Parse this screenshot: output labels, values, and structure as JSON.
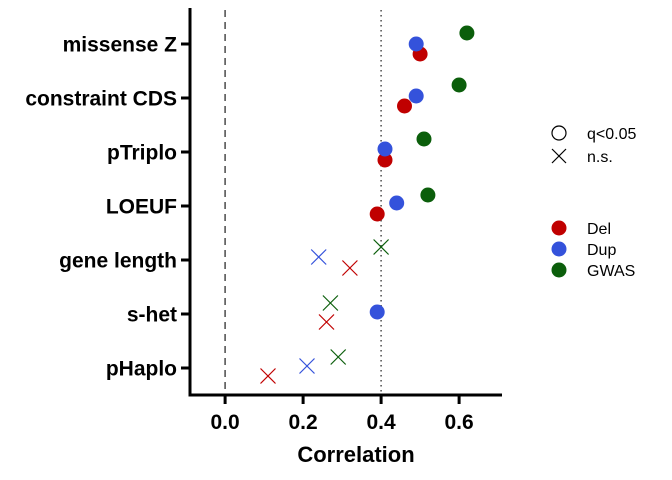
{
  "chart_data": {
    "type": "scatter",
    "title": "",
    "xlabel": "Correlation",
    "ylabel": "",
    "xlim": [
      -0.09,
      0.71
    ],
    "xticks": [
      0.0,
      0.2,
      0.4,
      0.6
    ],
    "xtick_labels": [
      "0.0",
      "0.2",
      "0.4",
      "0.6"
    ],
    "categories": [
      "missense Z",
      "constraint CDS",
      "pTriplo",
      "LOEUF",
      "gene length",
      "s-het",
      "pHaplo"
    ],
    "reference_lines": [
      {
        "x": 0.0,
        "style": "dashed",
        "color": "#555555"
      },
      {
        "x": 0.4,
        "style": "dotted",
        "color": "#555555"
      }
    ],
    "grid": false,
    "legend_position": "right",
    "series": [
      {
        "name": "Del",
        "color": "#c00000",
        "points": [
          {
            "category": "missense Z",
            "x": 0.5,
            "significant": true
          },
          {
            "category": "constraint CDS",
            "x": 0.46,
            "significant": true
          },
          {
            "category": "pTriplo",
            "x": 0.41,
            "significant": true
          },
          {
            "category": "LOEUF",
            "x": 0.39,
            "significant": true
          },
          {
            "category": "gene length",
            "x": 0.32,
            "significant": false
          },
          {
            "category": "s-het",
            "x": 0.26,
            "significant": false
          },
          {
            "category": "pHaplo",
            "x": 0.11,
            "significant": false
          }
        ]
      },
      {
        "name": "Dup",
        "color": "#3452db",
        "points": [
          {
            "category": "missense Z",
            "x": 0.49,
            "significant": true
          },
          {
            "category": "constraint CDS",
            "x": 0.49,
            "significant": true
          },
          {
            "category": "pTriplo",
            "x": 0.41,
            "significant": true
          },
          {
            "category": "LOEUF",
            "x": 0.44,
            "significant": true
          },
          {
            "category": "gene length",
            "x": 0.24,
            "significant": false
          },
          {
            "category": "s-het",
            "x": 0.39,
            "significant": true
          },
          {
            "category": "pHaplo",
            "x": 0.21,
            "significant": false
          }
        ]
      },
      {
        "name": "GWAS",
        "color": "#0b5e0b",
        "points": [
          {
            "category": "missense Z",
            "x": 0.62,
            "significant": true
          },
          {
            "category": "constraint CDS",
            "x": 0.6,
            "significant": true
          },
          {
            "category": "pTriplo",
            "x": 0.51,
            "significant": true
          },
          {
            "category": "LOEUF",
            "x": 0.52,
            "significant": true
          },
          {
            "category": "gene length",
            "x": 0.4,
            "significant": false
          },
          {
            "category": "s-het",
            "x": 0.27,
            "significant": false
          },
          {
            "category": "pHaplo",
            "x": 0.29,
            "significant": false
          }
        ]
      }
    ],
    "shape_legend": [
      {
        "label": "q<0.05",
        "marker": "circle-open"
      },
      {
        "label": "n.s.",
        "marker": "cross"
      }
    ],
    "color_legend": [
      {
        "label": "Del",
        "color": "#c00000"
      },
      {
        "label": "Dup",
        "color": "#3452db"
      },
      {
        "label": "GWAS",
        "color": "#0b5e0b"
      }
    ]
  }
}
